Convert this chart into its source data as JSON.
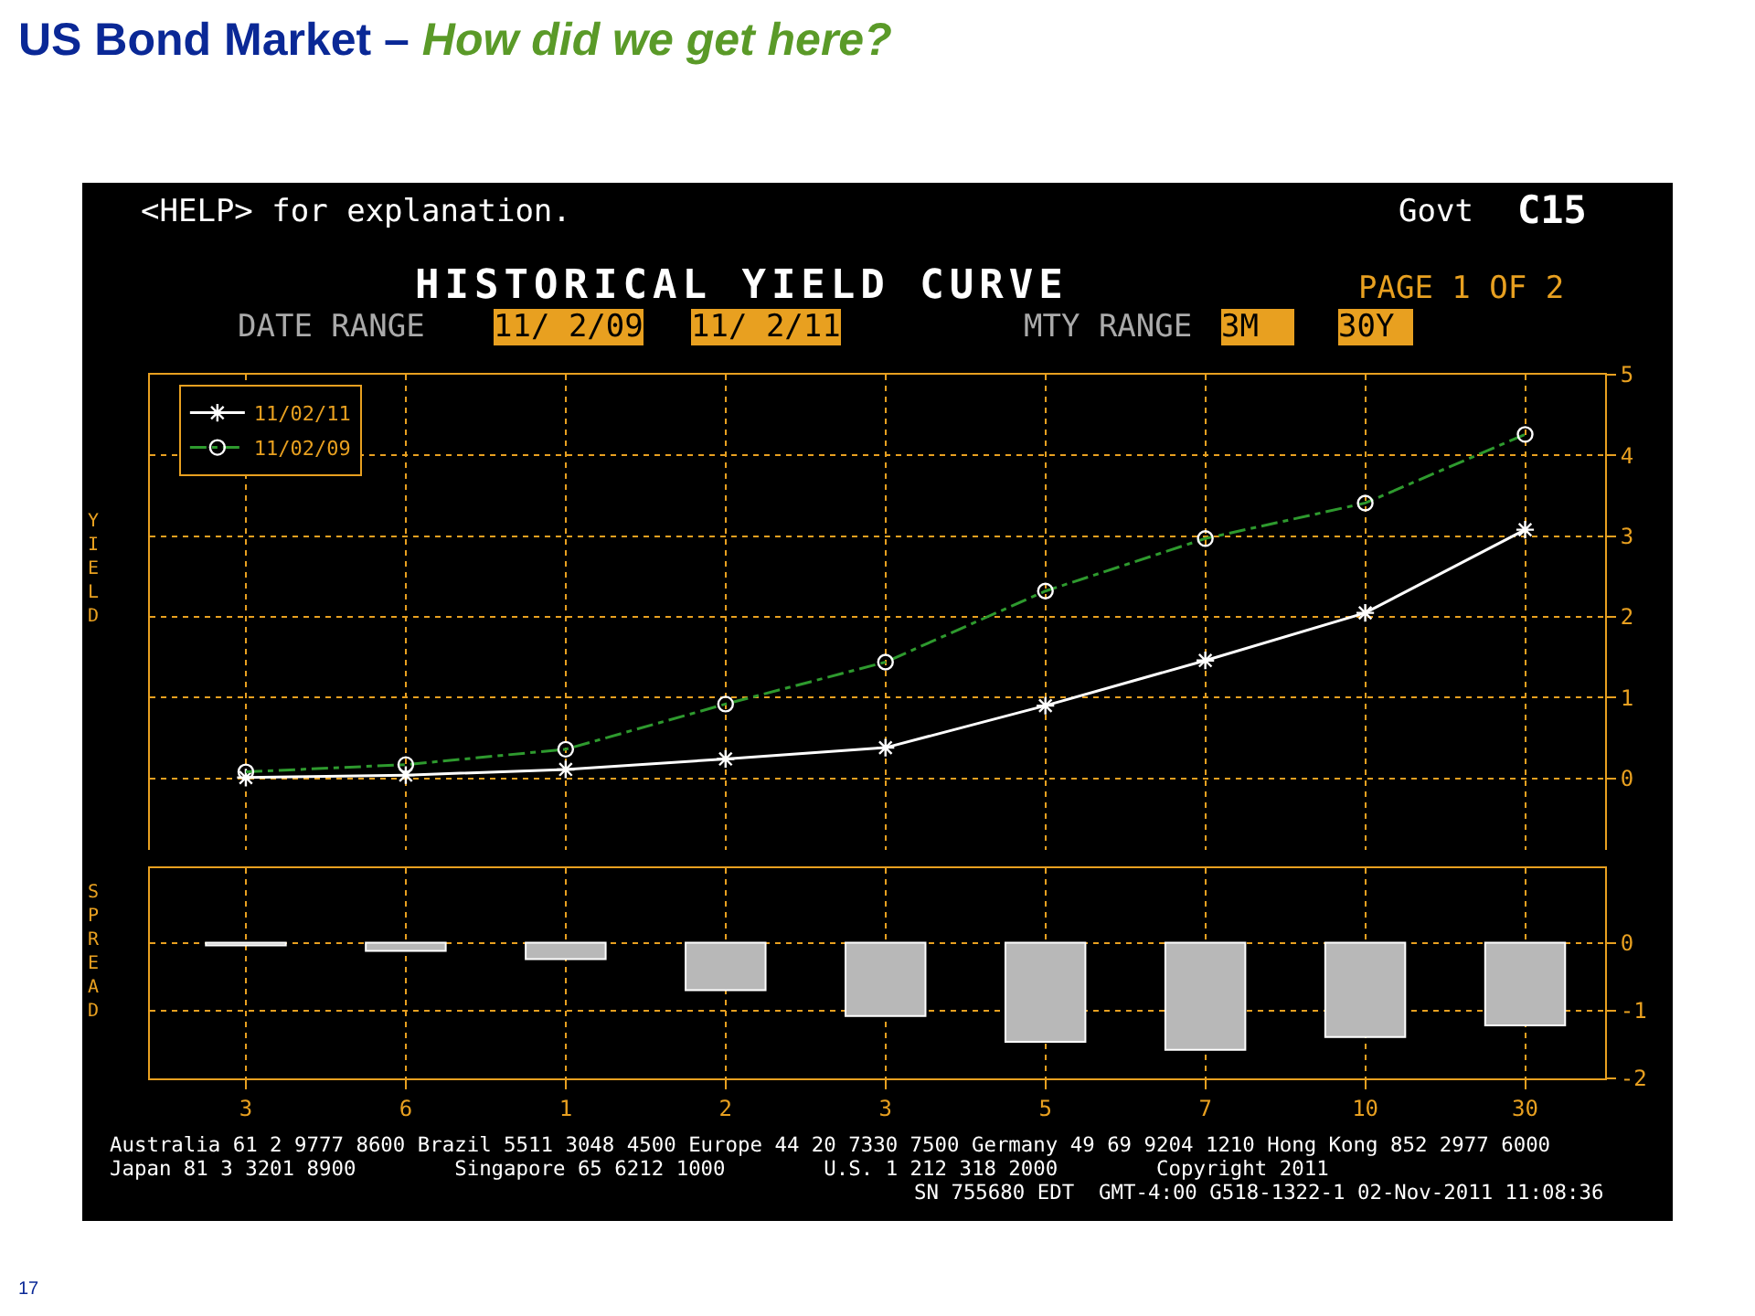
{
  "chart_data": [
    {
      "type": "line",
      "title": "US Bond Market –",
      "subtitle": "How did we get here?",
      "ylabel": "YIELD",
      "categories": [
        "3",
        "6",
        "1",
        "2",
        "3",
        "5",
        "7",
        "10",
        "30"
      ],
      "series": [
        {
          "name": "11/02/11",
          "color": "#ffffff",
          "marker": "cross",
          "line_style": "solid",
          "values": [
            0.01,
            0.04,
            0.11,
            0.24,
            0.38,
            0.9,
            1.46,
            2.05,
            3.08
          ]
        },
        {
          "name": "11/02/09",
          "color": "#2e9a2e",
          "marker": "circle",
          "line_style": "dashed",
          "values": [
            0.08,
            0.17,
            0.36,
            0.92,
            1.44,
            2.32,
            2.97,
            3.41,
            4.26
          ]
        }
      ],
      "ylim": [
        -1,
        5
      ],
      "yticks": [
        0,
        1,
        2,
        3,
        4,
        5
      ],
      "grid": true,
      "legend": "top left",
      "tick_labels": "y",
      "annotations": [
        "<HELP> for explanation.",
        "Govt",
        "C15",
        "HISTORICAL YIELD CURVE",
        "PAGE 1 OF 2",
        "DATE RANGE",
        "11/ 2/09",
        "11/ 2/11",
        "MTY RANGE",
        "3M",
        "30Y"
      ]
    },
    {
      "type": "bar",
      "ylabel": "SPREAD",
      "categories": [
        "3",
        "6",
        "1",
        "2",
        "3",
        "5",
        "7",
        "10",
        "30"
      ],
      "values": [
        -0.04,
        -0.12,
        -0.24,
        -0.7,
        -1.08,
        -1.46,
        -1.58,
        -1.39,
        -1.22
      ],
      "color": "#b8b8b8",
      "ylim": [
        -2,
        1.1
      ],
      "yticks": [
        0,
        -1,
        -2
      ],
      "grid": true,
      "annotations": [
        "Australia 61 2 9777 8600 Brazil 5511 3048 4500 Europe 44 20 7330 7500 Germany 49 69 9204 1210 Hong Kong 852 2977 6000",
        "Japan 81 3 3201 8900        Singapore 65 6212 1000        U.S. 1 212 318 2000        Copyright 2011",
        "SN 755680 EDT  GMT-4:00 G518-1322-1 02-Nov-2011 11:08:36",
        "17"
      ]
    }
  ]
}
